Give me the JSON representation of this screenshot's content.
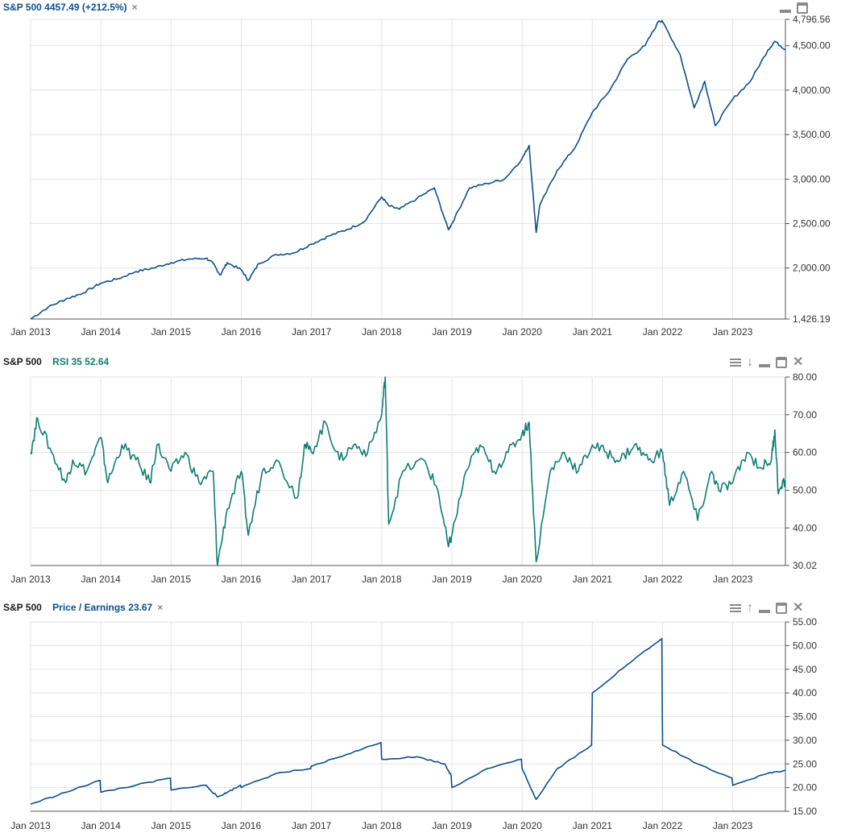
{
  "x_axis_labels": [
    "Jan 2013",
    "Jan 2014",
    "Jan 2015",
    "Jan 2016",
    "Jan 2017",
    "Jan 2018",
    "Jan 2019",
    "Jan 2020",
    "Jan 2021",
    "Jan 2022",
    "Jan 2023"
  ],
  "panels": [
    {
      "id": "price",
      "symbol": "",
      "title": "S&P 500 4457.49 (+212.5%)",
      "title_color": "#0b4e8f",
      "line_color": "#0b4e8f",
      "controls": [
        "minimize-icon",
        "maximize-icon"
      ],
      "y_ticks": [
        "4,796.56",
        "4,500.00",
        "4,000.00",
        "3,500.00",
        "3,000.00",
        "2,500.00",
        "2,000.00",
        "1,426.19"
      ]
    },
    {
      "id": "rsi",
      "symbol": "S&P 500",
      "title": "RSI 35 52.64",
      "title_color": "#0e7d73",
      "line_color": "#0e7d73",
      "controls": [
        "menu-icon",
        "arrow-down-icon",
        "minimize-icon",
        "maximize-icon",
        "close-icon"
      ],
      "y_ticks": [
        "80.00",
        "70.00",
        "60.00",
        "50.00",
        "40.00",
        "30.02"
      ]
    },
    {
      "id": "pe",
      "symbol": "S&P 500",
      "title": "Price / Earnings 23.67",
      "title_color": "#0b4e8f",
      "line_color": "#0b4e8f",
      "controls": [
        "menu-icon",
        "arrow-up-icon",
        "minimize-icon",
        "maximize-icon",
        "close-icon"
      ],
      "y_ticks": [
        "55.00",
        "50.00",
        "45.00",
        "40.00",
        "35.00",
        "30.00",
        "25.00",
        "20.00",
        "15.00"
      ]
    }
  ],
  "chart_data": [
    {
      "type": "line",
      "title": "S&P 500 4457.49 (+212.5%)",
      "xlabel": "",
      "ylabel": "",
      "ylim": [
        1426.19,
        4796.56
      ],
      "xlim": [
        2013.0,
        2023.75
      ],
      "grid": true,
      "series": [
        {
          "name": "S&P 500",
          "x": [
            2013.0,
            2013.25,
            2013.5,
            2013.75,
            2014.0,
            2014.25,
            2014.5,
            2014.75,
            2015.0,
            2015.25,
            2015.5,
            2015.6,
            2015.7,
            2015.8,
            2016.0,
            2016.1,
            2016.25,
            2016.5,
            2016.75,
            2017.0,
            2017.25,
            2017.5,
            2017.75,
            2018.0,
            2018.1,
            2018.25,
            2018.5,
            2018.75,
            2018.95,
            2019.0,
            2019.25,
            2019.5,
            2019.75,
            2020.0,
            2020.1,
            2020.2,
            2020.25,
            2020.5,
            2020.75,
            2021.0,
            2021.25,
            2021.5,
            2021.75,
            2021.95,
            2022.0,
            2022.25,
            2022.45,
            2022.6,
            2022.75,
            2023.0,
            2023.25,
            2023.5,
            2023.6,
            2023.75
          ],
          "values": [
            1426,
            1560,
            1650,
            1720,
            1830,
            1880,
            1960,
            2000,
            2060,
            2100,
            2110,
            2050,
            1920,
            2060,
            1980,
            1860,
            2050,
            2150,
            2170,
            2270,
            2360,
            2430,
            2520,
            2800,
            2700,
            2660,
            2780,
            2900,
            2430,
            2500,
            2900,
            2950,
            3000,
            3230,
            3380,
            2400,
            2700,
            3100,
            3350,
            3750,
            4000,
            4350,
            4500,
            4780,
            4770,
            4400,
            3800,
            4100,
            3600,
            3900,
            4100,
            4450,
            4550,
            4457
          ]
        }
      ]
    },
    {
      "type": "line",
      "title": "RSI 35 52.64",
      "xlabel": "",
      "ylabel": "",
      "ylim": [
        30.02,
        80.0
      ],
      "xlim": [
        2013.0,
        2023.75
      ],
      "grid": true,
      "series": [
        {
          "name": "RSI 35",
          "x": [
            2013.0,
            2013.1,
            2013.3,
            2013.5,
            2013.6,
            2013.8,
            2014.0,
            2014.1,
            2014.3,
            2014.5,
            2014.7,
            2014.8,
            2015.0,
            2015.2,
            2015.4,
            2015.6,
            2015.66,
            2015.8,
            2016.0,
            2016.1,
            2016.3,
            2016.5,
            2016.8,
            2016.9,
            2017.0,
            2017.2,
            2017.4,
            2017.6,
            2017.8,
            2018.0,
            2018.05,
            2018.1,
            2018.3,
            2018.6,
            2018.8,
            2018.95,
            2019.0,
            2019.2,
            2019.4,
            2019.6,
            2019.8,
            2020.0,
            2020.1,
            2020.2,
            2020.4,
            2020.6,
            2020.8,
            2021.0,
            2021.2,
            2021.4,
            2021.6,
            2021.8,
            2022.0,
            2022.1,
            2022.3,
            2022.5,
            2022.7,
            2022.8,
            2023.0,
            2023.2,
            2023.4,
            2023.55,
            2023.6,
            2023.65,
            2023.75
          ],
          "values": [
            60,
            69,
            60,
            52,
            58,
            55,
            64,
            52,
            62,
            58,
            52,
            62,
            55,
            60,
            52,
            55,
            30.02,
            45,
            55,
            38,
            55,
            58,
            48,
            62,
            60,
            68,
            58,
            62,
            60,
            70,
            80,
            41,
            55,
            58,
            50,
            35,
            38,
            55,
            62,
            55,
            60,
            65,
            68,
            31,
            55,
            60,
            55,
            62,
            60,
            58,
            62,
            58,
            60,
            46,
            55,
            42,
            55,
            50,
            52,
            60,
            56,
            58,
            66,
            49,
            52.64
          ]
        }
      ]
    },
    {
      "type": "line",
      "title": "Price / Earnings 23.67",
      "xlabel": "",
      "ylabel": "",
      "ylim": [
        15.0,
        55.0
      ],
      "xlim": [
        2013.0,
        2023.75
      ],
      "grid": true,
      "series": [
        {
          "name": "Price / Earnings",
          "x": [
            2013.0,
            2013.5,
            2013.99,
            2014.0,
            2014.5,
            2014.99,
            2015.0,
            2015.5,
            2015.66,
            2015.8,
            2015.99,
            2016.0,
            2016.5,
            2016.99,
            2017.0,
            2017.5,
            2017.99,
            2018.0,
            2018.5,
            2018.9,
            2018.99,
            2019.0,
            2019.5,
            2019.99,
            2020.0,
            2020.2,
            2020.5,
            2020.99,
            2021.0,
            2021.5,
            2021.99,
            2022.0,
            2022.5,
            2022.99,
            2023.0,
            2023.5,
            2023.75
          ],
          "values": [
            16.5,
            19,
            21.5,
            19,
            20.5,
            22,
            19.5,
            20.5,
            18,
            19,
            20.5,
            20,
            23,
            24,
            24.5,
            27,
            29.5,
            26,
            26.5,
            25,
            22.5,
            20,
            24,
            26,
            24,
            17.5,
            24,
            29,
            40,
            46,
            51.5,
            29,
            25,
            22,
            20.5,
            23,
            23.67
          ]
        }
      ]
    }
  ]
}
